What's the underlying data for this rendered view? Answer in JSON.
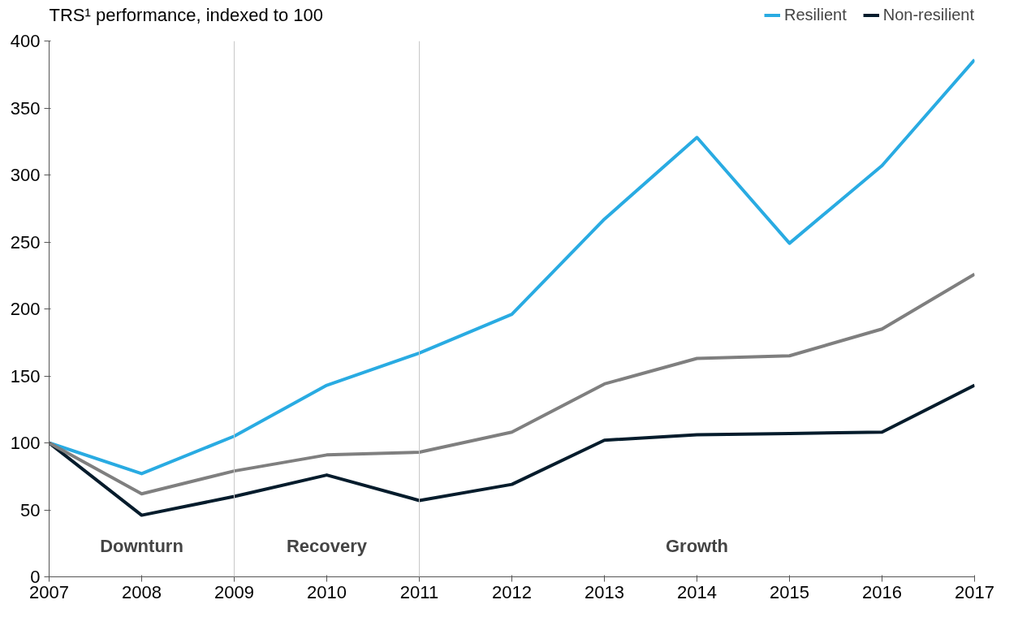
{
  "chart_data": {
    "type": "line",
    "title": "TRS¹ performance, indexed to 100",
    "x": [
      2007,
      2008,
      2009,
      2010,
      2011,
      2012,
      2013,
      2014,
      2015,
      2016,
      2017
    ],
    "series": [
      {
        "name": "Resilient",
        "color": "#29abe2",
        "values": [
          100,
          77,
          105,
          143,
          167,
          196,
          267,
          328,
          249,
          307,
          386
        ]
      },
      {
        "name": "Non-resilient",
        "color": "#051c2c",
        "values": [
          100,
          46,
          60,
          76,
          57,
          69,
          102,
          106,
          107,
          108,
          143
        ]
      },
      {
        "color": "#7f7f7f",
        "values": [
          100,
          62,
          79,
          91,
          93,
          108,
          144,
          163,
          165,
          185,
          226
        ]
      }
    ],
    "xlim": [
      2007,
      2017
    ],
    "xticks": [
      2007,
      2008,
      2009,
      2010,
      2011,
      2012,
      2013,
      2014,
      2015,
      2016,
      2017
    ],
    "ylim": [
      0,
      400
    ],
    "yticks": [
      0,
      50,
      100,
      150,
      200,
      250,
      300,
      350,
      400
    ],
    "ref_lines": [
      {
        "axis": "x",
        "value": 2009,
        "color": "#c8c8c8"
      },
      {
        "axis": "x",
        "value": 2011,
        "color": "#c8c8c8"
      }
    ],
    "annotations": [
      "Downturn",
      "Recovery",
      "Growth"
    ],
    "grid": false,
    "legend": "top right",
    "marker": "none",
    "line_style": "solid"
  }
}
